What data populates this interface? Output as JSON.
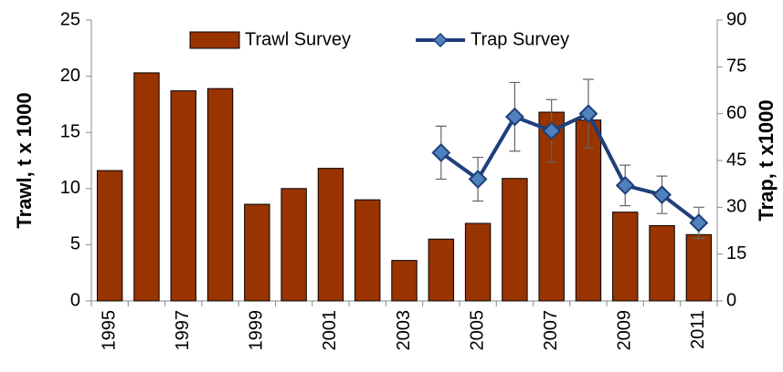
{
  "chart_data": {
    "type": "bar",
    "categories": [
      "1995",
      null,
      "1997",
      null,
      "1999",
      null,
      "2001",
      null,
      "2003",
      null,
      "2005",
      null,
      "2007",
      null,
      "2009",
      null,
      "2011"
    ],
    "ylabel": "Trawl, t x 1000",
    "y2label": "Trap, t x1000",
    "ylim": [
      0,
      25
    ],
    "yticks": [
      0,
      5,
      10,
      15,
      20,
      25
    ],
    "y2lim": [
      0,
      90
    ],
    "y2ticks": [
      0,
      15,
      30,
      45,
      60,
      75,
      90
    ],
    "legend": "top",
    "series": [
      {
        "name": "Trawl Survey",
        "type": "bar",
        "color": "#993300",
        "values": [
          11.6,
          20.3,
          18.7,
          18.9,
          8.6,
          10.0,
          11.8,
          9.0,
          3.6,
          5.5,
          6.9,
          10.9,
          16.8,
          16.1,
          7.9,
          6.7,
          5.9
        ]
      },
      {
        "name": "Trap Survey",
        "type": "line",
        "axis": "y2",
        "color": "#1f3f7a",
        "marker_color": "#4f81bd",
        "values": [
          null,
          null,
          null,
          null,
          null,
          null,
          null,
          null,
          null,
          47.5,
          39,
          59,
          54.5,
          60,
          37,
          34,
          25
        ],
        "errors": [
          null,
          null,
          null,
          null,
          null,
          null,
          null,
          null,
          null,
          8.5,
          7,
          11,
          10,
          11,
          6.5,
          6,
          5
        ]
      }
    ]
  }
}
